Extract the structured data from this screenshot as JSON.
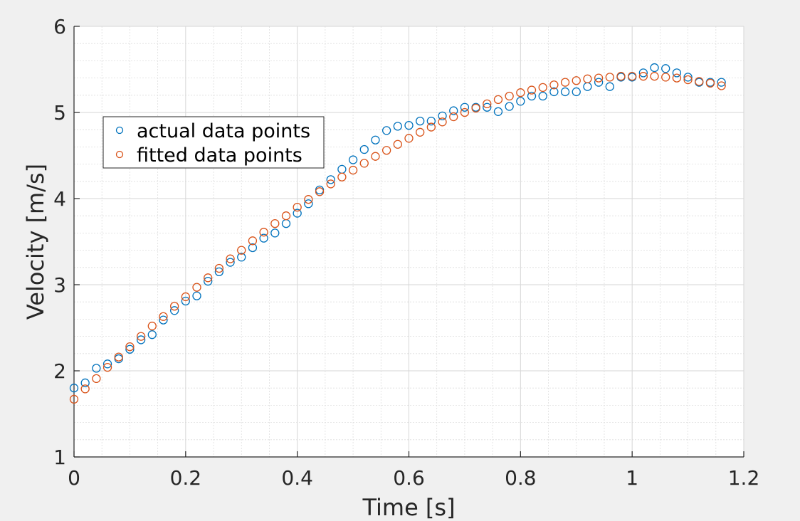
{
  "chart_data": {
    "type": "scatter",
    "xlabel": "Time [s]",
    "ylabel": "Velocity [m/s]",
    "xlim": [
      0,
      1.2
    ],
    "ylim": [
      1,
      6
    ],
    "xticks": [
      "0",
      "0.2",
      "0.4",
      "0.6",
      "0.8",
      "1",
      "1.2"
    ],
    "yticks": [
      "1",
      "2",
      "3",
      "4",
      "5",
      "6"
    ],
    "grid": true,
    "minor_grid": true,
    "legend_position": "upper-left",
    "x": [
      0,
      0.02,
      0.04,
      0.06,
      0.08,
      0.1,
      0.12,
      0.14,
      0.16,
      0.18,
      0.2,
      0.22,
      0.24,
      0.26,
      0.28,
      0.3,
      0.32,
      0.34,
      0.36,
      0.38,
      0.4,
      0.42,
      0.44,
      0.46,
      0.48,
      0.5,
      0.52,
      0.54,
      0.56,
      0.58,
      0.6,
      0.62,
      0.64,
      0.66,
      0.68,
      0.7,
      0.72,
      0.74,
      0.76,
      0.78,
      0.8,
      0.82,
      0.84,
      0.86,
      0.88,
      0.9,
      0.92,
      0.94,
      0.96,
      0.98,
      1.0,
      1.02,
      1.04,
      1.06,
      1.08,
      1.1,
      1.12,
      1.14,
      1.16
    ],
    "series": [
      {
        "name": "actual data points",
        "color": "#0072bd",
        "marker": "circle",
        "values": [
          1.8,
          1.86,
          2.03,
          2.08,
          2.14,
          2.25,
          2.36,
          2.42,
          2.59,
          2.7,
          2.81,
          2.87,
          3.04,
          3.15,
          3.26,
          3.32,
          3.43,
          3.54,
          3.6,
          3.71,
          3.83,
          3.94,
          4.1,
          4.22,
          4.34,
          4.45,
          4.57,
          4.68,
          4.79,
          4.84,
          4.85,
          4.9,
          4.9,
          4.96,
          5.02,
          5.06,
          5.06,
          5.06,
          5.01,
          5.07,
          5.13,
          5.19,
          5.19,
          5.24,
          5.24,
          5.24,
          5.3,
          5.35,
          5.3,
          5.41,
          5.41,
          5.46,
          5.52,
          5.51,
          5.46,
          5.41,
          5.35,
          5.35,
          5.35
        ]
      },
      {
        "name": "fitted data points",
        "color": "#d95319",
        "marker": "circle",
        "values": [
          1.67,
          1.79,
          1.91,
          2.04,
          2.16,
          2.28,
          2.4,
          2.52,
          2.63,
          2.75,
          2.86,
          2.97,
          3.08,
          3.19,
          3.3,
          3.4,
          3.51,
          3.61,
          3.71,
          3.8,
          3.9,
          3.99,
          4.08,
          4.17,
          4.25,
          4.33,
          4.41,
          4.49,
          4.56,
          4.63,
          4.7,
          4.77,
          4.83,
          4.89,
          4.95,
          5.0,
          5.05,
          5.1,
          5.15,
          5.19,
          5.23,
          5.26,
          5.29,
          5.32,
          5.35,
          5.37,
          5.39,
          5.4,
          5.41,
          5.42,
          5.42,
          5.42,
          5.42,
          5.41,
          5.4,
          5.38,
          5.36,
          5.34,
          5.31
        ]
      }
    ]
  }
}
